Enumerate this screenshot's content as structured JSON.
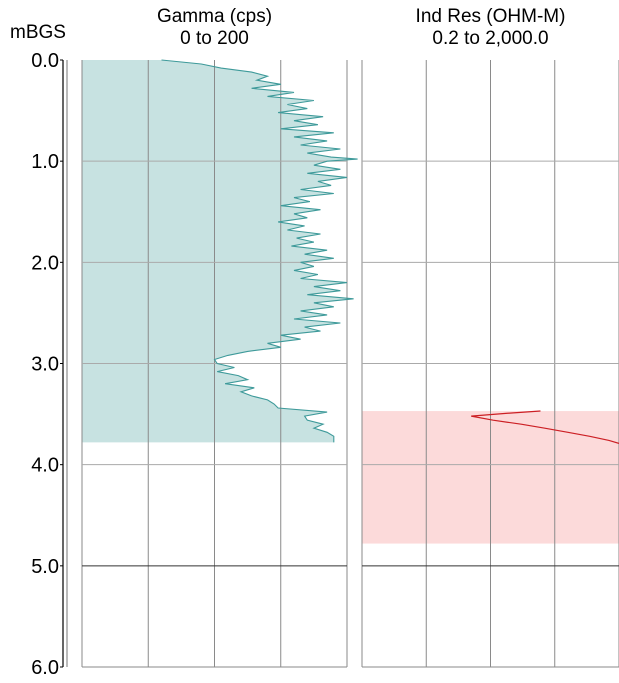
{
  "depth_axis_title": "mBGS",
  "tracks": [
    {
      "key": "gamma",
      "title": "Gamma (cps)",
      "range_label": "0 to 200"
    },
    {
      "key": "resistivity",
      "title": "Ind Res (OHM-M)",
      "range_label": "0.2 to 2,000.0"
    }
  ],
  "colors": {
    "gamma_fill": "#c7e2e1",
    "gamma_line": "#3e9a9a",
    "res_fill": "#fcdada",
    "res_line": "#cc1f24",
    "grid": "#8a8a8a"
  },
  "chart_data": [
    {
      "type": "area",
      "track": "Gamma (cps)",
      "xlabel": "Gamma (cps)",
      "ylabel": "mBGS",
      "xlim": [
        0,
        200
      ],
      "ylim": [
        0.0,
        6.0
      ],
      "y_reversed": true,
      "y_ticks": [
        "0.0",
        "1.0",
        "2.0",
        "3.0",
        "4.0",
        "5.0",
        "6.0"
      ],
      "grid": true,
      "series": [
        {
          "depth": [
            0.0,
            0.04,
            0.08,
            0.12,
            0.16,
            0.2,
            0.24,
            0.28,
            0.32,
            0.36,
            0.4,
            0.44,
            0.48,
            0.52,
            0.56,
            0.6,
            0.64,
            0.68,
            0.72,
            0.76,
            0.8,
            0.84,
            0.88,
            0.92,
            0.96,
            0.98,
            1.0,
            1.04,
            1.08,
            1.12,
            1.16,
            1.2,
            1.24,
            1.28,
            1.32,
            1.36,
            1.4,
            1.44,
            1.48,
            1.52,
            1.56,
            1.6,
            1.64,
            1.68,
            1.72,
            1.76,
            1.8,
            1.84,
            1.88,
            1.92,
            1.96,
            2.0,
            2.04,
            2.08,
            2.12,
            2.16,
            2.2,
            2.24,
            2.28,
            2.32,
            2.36,
            2.4,
            2.44,
            2.48,
            2.52,
            2.56,
            2.6,
            2.64,
            2.68,
            2.72,
            2.76,
            2.8,
            2.84,
            2.88,
            2.92,
            2.96,
            3.0,
            3.04,
            3.08,
            3.12,
            3.16,
            3.2,
            3.24,
            3.28,
            3.32,
            3.36,
            3.4,
            3.44,
            3.48,
            3.52,
            3.56,
            3.6,
            3.64,
            3.68,
            3.72,
            3.78
          ],
          "value": [
            60,
            90,
            105,
            128,
            140,
            132,
            150,
            128,
            160,
            140,
            175,
            155,
            170,
            148,
            182,
            160,
            178,
            150,
            190,
            160,
            185,
            165,
            195,
            170,
            188,
            208,
            185,
            175,
            195,
            170,
            200,
            178,
            188,
            165,
            190,
            160,
            172,
            150,
            180,
            160,
            170,
            148,
            168,
            155,
            180,
            162,
            175,
            158,
            185,
            168,
            190,
            165,
            175,
            160,
            178,
            165,
            200,
            175,
            195,
            170,
            205,
            175,
            190,
            165,
            185,
            160,
            195,
            168,
            180,
            150,
            165,
            140,
            150,
            125,
            110,
            100,
            102,
            115,
            102,
            118,
            125,
            108,
            130,
            120,
            128,
            140,
            145,
            148,
            185,
            168,
            170,
            182,
            175,
            185,
            190,
            190
          ]
        }
      ]
    },
    {
      "type": "line",
      "track": "Ind Res (OHM-M)",
      "xlabel": "Ind Res (OHM-M)",
      "ylabel": "mBGS",
      "xlim": [
        0.2,
        2000.0
      ],
      "xscale": "log",
      "ylim": [
        0.0,
        6.0
      ],
      "y_reversed": true,
      "shaded_interval": [
        3.47,
        4.78
      ],
      "series": [
        {
          "depth": [
            3.47,
            3.49,
            3.52,
            3.56,
            3.6,
            3.64,
            3.68,
            3.72,
            3.76,
            3.79
          ],
          "value": [
            120,
            40,
            10,
            22,
            60,
            140,
            320,
            700,
            1400,
            2000
          ]
        }
      ]
    }
  ]
}
